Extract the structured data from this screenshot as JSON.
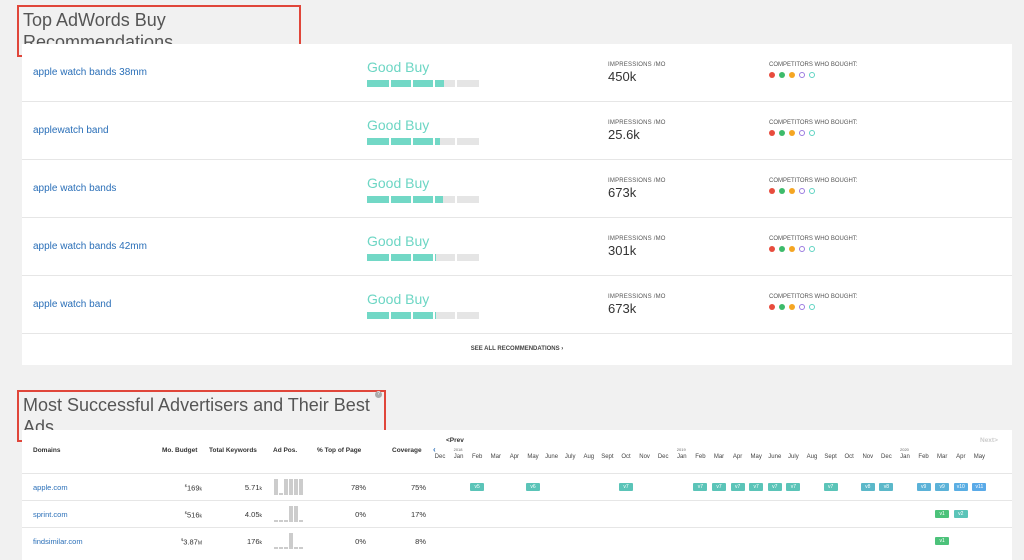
{
  "recommendations": {
    "title": "Top AdWords Buy Recommendations",
    "impressions_label": "IMPRESSIONS /MO",
    "competitors_label": "COMPETITORS WHO BOUGHT:",
    "see_all": "SEE ALL RECOMMENDATIONS ›",
    "competitor_colors": [
      {
        "color": "#e84c3d",
        "filled": true
      },
      {
        "color": "#3dbb6b",
        "filled": true
      },
      {
        "color": "#f5a623",
        "filled": true
      },
      {
        "color": "#9b7be0",
        "filled": false
      },
      {
        "color": "#5fd3c2",
        "filled": false
      }
    ],
    "items": [
      {
        "keyword": "apple watch bands 38mm",
        "rating": "Good Buy",
        "score": 0.69,
        "impressions": "450k"
      },
      {
        "keyword": "applewatch band",
        "rating": "Good Buy",
        "score": 0.65,
        "impressions": "25.6k"
      },
      {
        "keyword": "apple watch bands",
        "rating": "Good Buy",
        "score": 0.68,
        "impressions": "673k"
      },
      {
        "keyword": "apple watch bands 42mm",
        "rating": "Good Buy",
        "score": 0.62,
        "impressions": "301k"
      },
      {
        "keyword": "apple watch band",
        "rating": "Good Buy",
        "score": 0.62,
        "impressions": "673k"
      }
    ]
  },
  "advertisers": {
    "title": "Most Successful Advertisers and Their Best Ads",
    "help": "?",
    "columns": [
      "Domains",
      "Mo. Budget",
      "Total Keywords",
      "Ad Pos.",
      "% Top of Page",
      "Coverage"
    ],
    "prev": "<Prev",
    "next": "Next>",
    "prev_arrow": "‹",
    "months": [
      "Dec",
      "Jan",
      "Feb",
      "Mar",
      "Apr",
      "May",
      "June",
      "July",
      "Aug",
      "Sept",
      "Oct",
      "Nov",
      "Dec",
      "Jan",
      "Feb",
      "Mar",
      "Apr",
      "May",
      "June",
      "July",
      "Aug",
      "Sept",
      "Oct",
      "Nov",
      "Dec",
      "Jan",
      "Feb",
      "Mar",
      "Apr",
      "May"
    ],
    "years": [
      {
        "label": "2018",
        "month_index": 1
      },
      {
        "label": "2019",
        "month_index": 13
      },
      {
        "label": "2020",
        "month_index": 25
      }
    ],
    "rows": [
      {
        "domain": "apple.com",
        "budget": "169",
        "budget_unit": "k",
        "keywords": "5.71",
        "keywords_unit": "k",
        "ad_pos": [
          1,
          0.1,
          1,
          1,
          1,
          1
        ],
        "top": "78%",
        "coverage": "75%",
        "ads": [
          {
            "m": 2,
            "v": "v5",
            "c": "#5bc4b8"
          },
          {
            "m": 5,
            "v": "v6",
            "c": "#5bc4b8"
          },
          {
            "m": 10,
            "v": "v7",
            "c": "#5bc4b8"
          },
          {
            "m": 14,
            "v": "v7",
            "c": "#5bc4b8"
          },
          {
            "m": 15,
            "v": "v7",
            "c": "#5bc4b8"
          },
          {
            "m": 16,
            "v": "v7",
            "c": "#5bc4b8"
          },
          {
            "m": 17,
            "v": "v7",
            "c": "#5bc4b8"
          },
          {
            "m": 18,
            "v": "v7",
            "c": "#5bc4b8"
          },
          {
            "m": 19,
            "v": "v7",
            "c": "#5bc4b8"
          },
          {
            "m": 21,
            "v": "v7",
            "c": "#5bc4b8"
          },
          {
            "m": 23,
            "v": "v8",
            "c": "#5bb8c9"
          },
          {
            "m": 24,
            "v": "v8",
            "c": "#5bb8c9"
          },
          {
            "m": 26,
            "v": "v9",
            "c": "#5bb2d8"
          },
          {
            "m": 27,
            "v": "v9",
            "c": "#5bb2d8"
          },
          {
            "m": 28,
            "v": "v10",
            "c": "#5aaee3"
          },
          {
            "m": 29,
            "v": "v11",
            "c": "#5aaae8"
          }
        ]
      },
      {
        "domain": "sprint.com",
        "budget": "516",
        "budget_unit": "k",
        "keywords": "4.05",
        "keywords_unit": "k",
        "ad_pos": [
          0.1,
          0.1,
          0.1,
          1,
          1,
          0.1
        ],
        "top": "0%",
        "coverage": "17%",
        "ads": [
          {
            "m": 27,
            "v": "v1",
            "c": "#4cc27a"
          },
          {
            "m": 28,
            "v": "v2",
            "c": "#5bc4b8"
          }
        ]
      },
      {
        "domain": "findsimilar.com",
        "budget": "3.87",
        "budget_unit": "M",
        "keywords": "176",
        "keywords_unit": "k",
        "ad_pos": [
          0.1,
          0.1,
          0.1,
          1,
          0.1,
          0.1
        ],
        "top": "0%",
        "coverage": "8%",
        "ads": [
          {
            "m": 27,
            "v": "v1",
            "c": "#4cc27a"
          }
        ]
      }
    ]
  }
}
